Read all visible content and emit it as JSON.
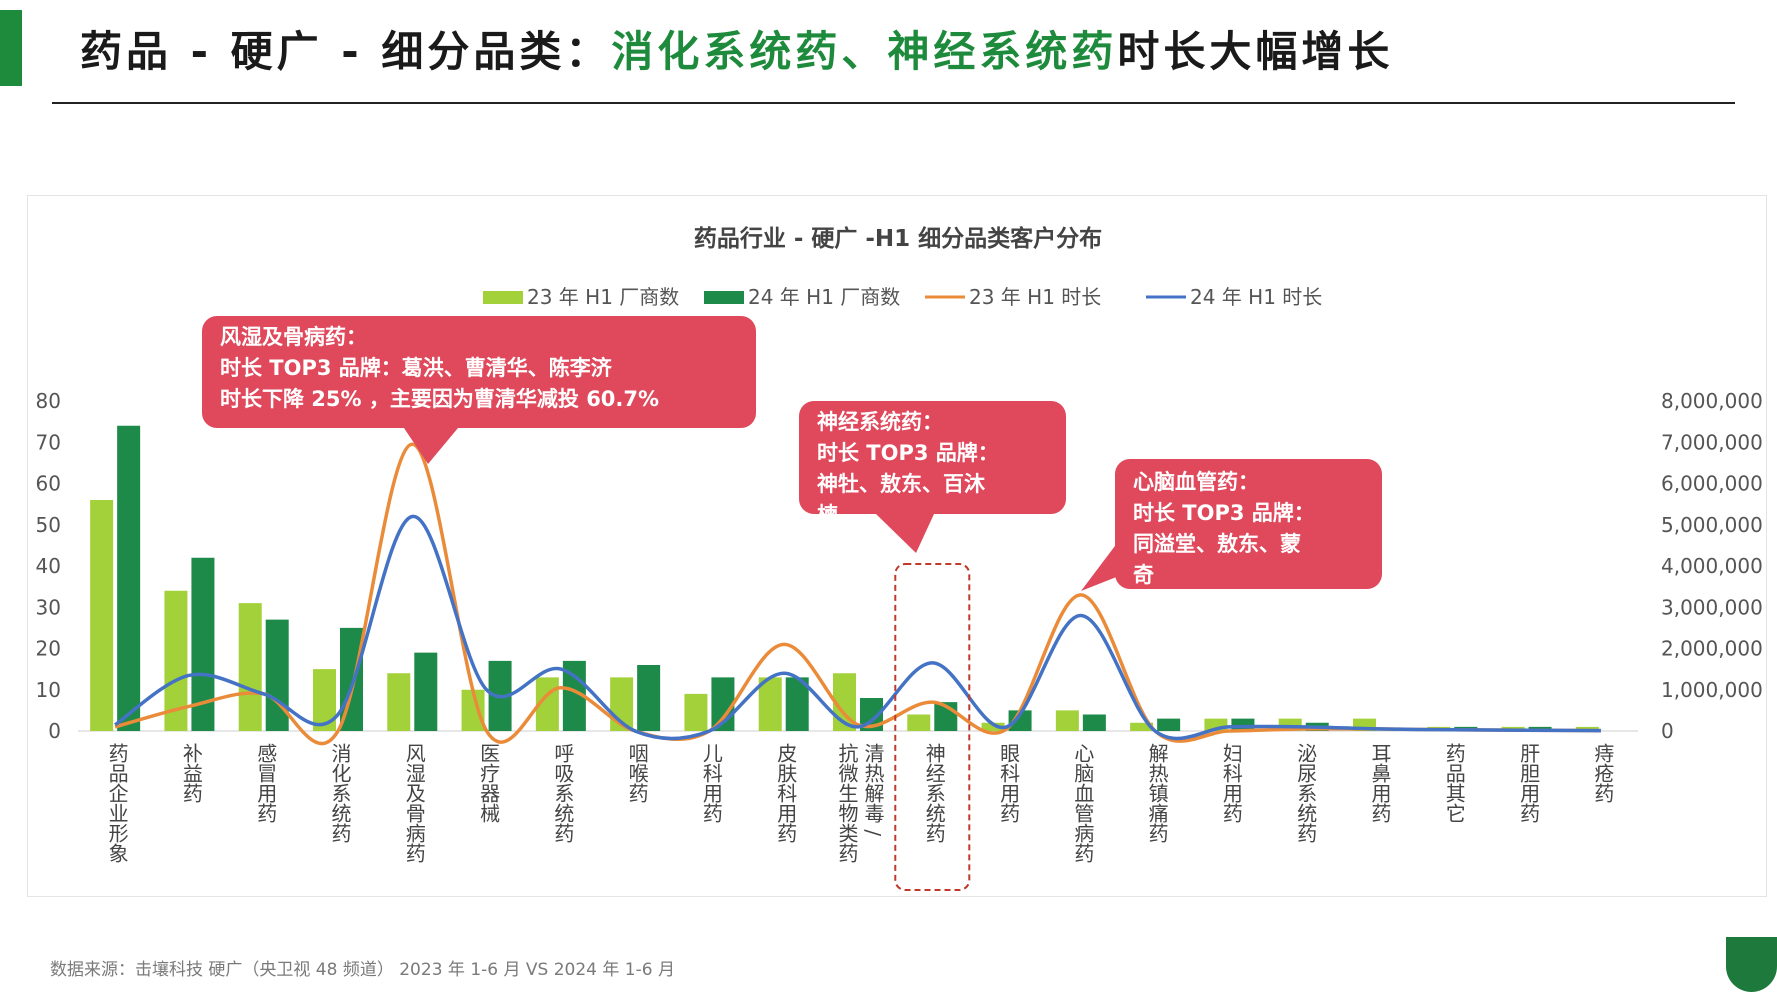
{
  "header": {
    "title_prefix": "药品 - 硬广 - 细分品类：",
    "title_highlight": "消化系统药、神经系统药",
    "title_suffix": "时长大幅增长"
  },
  "footer": {
    "source": "数据来源：击壤科技 硬广（央卫视 48 频道）  2023 年 1-6 月  VS 2024 年 1-6 月"
  },
  "colors": {
    "bar23": "#a3d139",
    "bar24": "#1e8a4a",
    "line23": "#ea8b3a",
    "line24": "#4472c4",
    "callout": "#e0485b",
    "highlight_box": "#c0392b"
  },
  "chart_data": {
    "type": "bar",
    "title": "药品行业 - 硬广 -H1 细分品类客户分布",
    "categories": [
      "药品企业形象",
      "补益药",
      "感冒用药",
      "消化系统药",
      "风湿及骨病药",
      "医疗器械",
      "呼吸系统药",
      "咽喉药",
      "儿科用药",
      "皮肤科用药",
      "清热解毒 / 抗微生物类药",
      "神经系统药",
      "眼科用药",
      "心脑血管病药",
      "解热镇痛药",
      "妇科用药",
      "泌尿系统药",
      "耳鼻用药",
      "药品其它",
      "肝胆用药",
      "痔疮药"
    ],
    "series": [
      {
        "name": "23 年 H1 厂商数",
        "kind": "bar",
        "axis": "left",
        "values": [
          56,
          34,
          31,
          15,
          14,
          10,
          13,
          13,
          9,
          13,
          14,
          4,
          2,
          5,
          2,
          3,
          3,
          3,
          1,
          1,
          1
        ]
      },
      {
        "name": "24 年 H1 厂商数",
        "kind": "bar",
        "axis": "left",
        "values": [
          74,
          42,
          27,
          25,
          19,
          17,
          17,
          16,
          13,
          13,
          8,
          7,
          5,
          4,
          3,
          3,
          2,
          0,
          1,
          1,
          0
        ]
      },
      {
        "name": "23 年 H1 时长",
        "kind": "line",
        "axis": "right",
        "values": [
          100000,
          600000,
          900000,
          0,
          6950000,
          0,
          1050000,
          0,
          0,
          2100000,
          150000,
          700000,
          50000,
          3300000,
          0,
          0,
          50000,
          50000,
          30000,
          20000,
          10000
        ]
      },
      {
        "name": "24 年 H1 时长",
        "kind": "line",
        "axis": "right",
        "values": [
          150000,
          1350000,
          900000,
          400000,
          5200000,
          1000000,
          1500000,
          0,
          0,
          1400000,
          100000,
          1650000,
          100000,
          2800000,
          0,
          100000,
          100000,
          50000,
          30000,
          20000,
          10000
        ]
      }
    ],
    "ylim_left": [
      0,
      80
    ],
    "yticks_left": [
      "0",
      "10",
      "20",
      "30",
      "40",
      "50",
      "60",
      "70",
      "80"
    ],
    "ylim_right": [
      0,
      8000000
    ],
    "yticks_right": [
      "0",
      "1,000,000",
      "2,000,000",
      "3,000,000",
      "4,000,000",
      "5,000,000",
      "6,000,000",
      "7,000,000",
      "8,000,000"
    ],
    "legend_position": "top",
    "highlight_category": "神经系统药",
    "annotations": [
      {
        "category": "风湿及骨病药",
        "lines": [
          "风湿及骨病药：",
          "时长 TOP3 品牌：葛洪、曹清华、陈李济",
          "时长下降 25% ，主要因为曹清华减投 60.7%"
        ]
      },
      {
        "category": "神经系统药",
        "lines": [
          "神经系统药：",
          "时长 TOP3 品牌：",
          "神牡、敖东、百沐",
          "楝"
        ]
      },
      {
        "category": "心脑血管病药",
        "lines": [
          "心脑血管药：",
          "时长 TOP3 品牌：",
          "同溢堂、敖东、蒙",
          "奇"
        ]
      }
    ]
  }
}
